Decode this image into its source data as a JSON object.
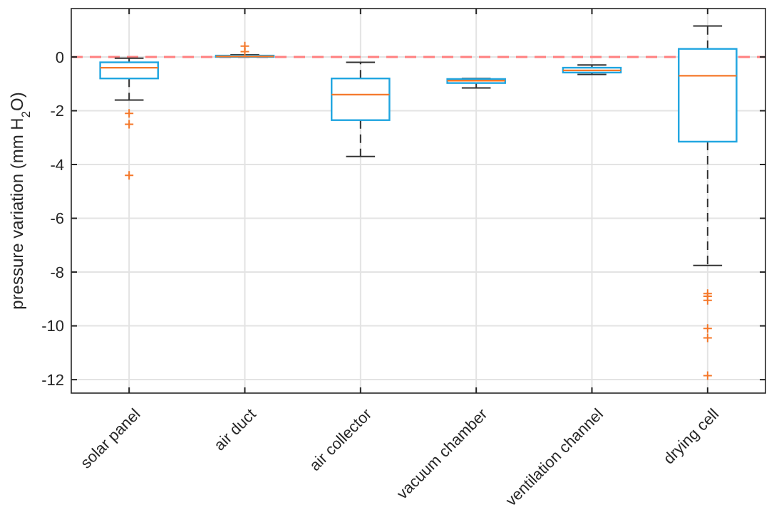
{
  "chart_data": {
    "type": "box",
    "ylabel": "pressure variation (mm H$_{2}$O)",
    "categories": [
      "solar panel",
      "air duct",
      "air collector",
      "vacuum chamber",
      "ventilation channel",
      "drying cell"
    ],
    "color": "#1fa5e0",
    "boxes": [
      {
        "low": -1.6,
        "q1": -0.8,
        "median": -0.4,
        "q3": -0.2,
        "high": -0.05,
        "outliers": [
          -2.1,
          -2.5,
          -4.4
        ]
      },
      {
        "low": 0,
        "q1": 0,
        "median": 0.02,
        "q3": 0.05,
        "high": 0.08,
        "outliers": [
          0.2,
          0.4
        ]
      },
      {
        "low": -3.7,
        "q1": -2.35,
        "median": -1.4,
        "q3": -0.8,
        "high": -0.2
      },
      {
        "low": -1.15,
        "q1": -0.97,
        "median": -0.88,
        "q3": -0.82,
        "high": -0.8
      },
      {
        "low": -0.65,
        "q1": -0.58,
        "median": -0.5,
        "q3": -0.4,
        "high": -0.3
      },
      {
        "low": -7.75,
        "q1": -3.15,
        "median": -0.7,
        "q3": 0.3,
        "high": 1.15,
        "outliers": [
          -8.8,
          -8.9,
          -9.05,
          -10.1,
          -10.45,
          -11.85
        ]
      }
    ],
    "ylim": [
      -12.5,
      1.8
    ],
    "yticks": [
      -12,
      -10,
      -8,
      -6,
      -4,
      -2,
      0
    ],
    "grid": true,
    "marker": "cross",
    "ref_lines": [
      {
        "axis": "y",
        "value": 0,
        "color": "#ff8080",
        "line_style": "dashed"
      }
    ]
  }
}
